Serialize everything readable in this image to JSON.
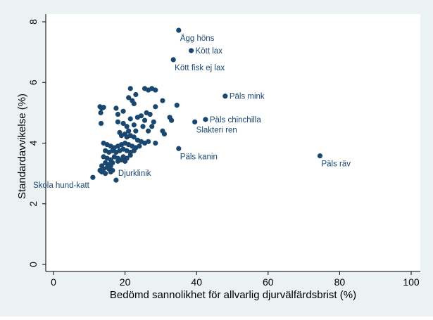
{
  "colors": {
    "outer_background": "#eaf2f3",
    "plot_background": "#ffffff",
    "marker": "#1a476f",
    "axis": "#000000",
    "text": "#1a476f"
  },
  "chart_data": {
    "type": "scatter",
    "xlabel": "Bedömd sannolikhet för allvarlig djurvälfärdsbrist (%)",
    "ylabel": "Standardavvikelse (%)",
    "xlim": [
      0,
      100
    ],
    "ylim": [
      0,
      8
    ],
    "x_ticks": [
      0,
      20,
      40,
      60,
      80,
      100
    ],
    "y_ticks": [
      0,
      2,
      4,
      6,
      8
    ],
    "grid": false,
    "legend": "none",
    "labeled_points": [
      {
        "label": "Ägg höns",
        "x": 35.0,
        "y": 7.72,
        "label_pos": "below-right"
      },
      {
        "label": "Kött lax",
        "x": 38.5,
        "y": 7.05,
        "label_pos": "right"
      },
      {
        "label": "Kött fisk ej lax",
        "x": 33.5,
        "y": 6.75,
        "label_pos": "below-right"
      },
      {
        "label": "Päls mink",
        "x": 48.0,
        "y": 5.55,
        "label_pos": "right"
      },
      {
        "label": "Päls chinchilla",
        "x": 42.5,
        "y": 4.78,
        "label_pos": "right"
      },
      {
        "label": "Slakteri ren",
        "x": 39.5,
        "y": 4.7,
        "label_pos": "below-right"
      },
      {
        "label": "Päls kanin",
        "x": 35.0,
        "y": 3.82,
        "label_pos": "below-right"
      },
      {
        "label": "Päls räv",
        "x": 74.5,
        "y": 3.58,
        "label_pos": "below-right"
      },
      {
        "label": "Djurklinik",
        "x": 17.5,
        "y": 2.78,
        "label_pos": "above-right"
      },
      {
        "label": "Skola hund-katt",
        "x": 11.0,
        "y": 2.87,
        "label_pos": "below-left"
      }
    ],
    "points": [
      [
        13.0,
        5.2
      ],
      [
        13.5,
        5.15
      ],
      [
        13.2,
        5.0
      ],
      [
        14.0,
        5.18
      ],
      [
        13.3,
        4.65
      ],
      [
        17.5,
        5.15
      ],
      [
        19.5,
        5.05
      ],
      [
        18.0,
        4.95
      ],
      [
        21.5,
        5.8
      ],
      [
        21.0,
        5.5
      ],
      [
        22.0,
        5.4
      ],
      [
        23.0,
        5.6
      ],
      [
        22.5,
        5.3
      ],
      [
        25.5,
        5.8
      ],
      [
        26.5,
        5.75
      ],
      [
        27.5,
        5.8
      ],
      [
        28.5,
        5.75
      ],
      [
        30.5,
        5.4
      ],
      [
        28.5,
        5.2
      ],
      [
        34.5,
        5.25
      ],
      [
        26.0,
        5.0
      ],
      [
        27.0,
        4.95
      ],
      [
        24.5,
        4.9
      ],
      [
        21.5,
        4.8
      ],
      [
        23.5,
        4.85
      ],
      [
        25.5,
        4.75
      ],
      [
        28.0,
        4.7
      ],
      [
        27.5,
        4.55
      ],
      [
        32.5,
        4.85
      ],
      [
        33.0,
        4.75
      ],
      [
        30.5,
        4.4
      ],
      [
        31.0,
        4.3
      ],
      [
        18.0,
        4.7
      ],
      [
        19.5,
        4.65
      ],
      [
        20.5,
        4.55
      ],
      [
        21.0,
        4.4
      ],
      [
        22.5,
        4.6
      ],
      [
        23.0,
        4.4
      ],
      [
        25.0,
        4.55
      ],
      [
        26.5,
        4.4
      ],
      [
        18.5,
        4.35
      ],
      [
        19.0,
        4.25
      ],
      [
        20.0,
        4.3
      ],
      [
        20.5,
        4.2
      ],
      [
        21.5,
        4.25
      ],
      [
        22.5,
        4.2
      ],
      [
        23.5,
        4.1
      ],
      [
        24.5,
        4.05
      ],
      [
        25.5,
        4.0
      ],
      [
        26.5,
        4.05
      ],
      [
        28.5,
        4.0
      ],
      [
        14.0,
        4.0
      ],
      [
        15.0,
        3.95
      ],
      [
        16.0,
        3.9
      ],
      [
        17.0,
        3.85
      ],
      [
        18.0,
        3.9
      ],
      [
        19.0,
        3.95
      ],
      [
        20.0,
        4.0
      ],
      [
        21.0,
        3.95
      ],
      [
        22.0,
        3.9
      ],
      [
        23.0,
        3.85
      ],
      [
        24.0,
        3.9
      ],
      [
        14.5,
        3.75
      ],
      [
        15.5,
        3.7
      ],
      [
        16.5,
        3.75
      ],
      [
        17.5,
        3.7
      ],
      [
        18.5,
        3.75
      ],
      [
        19.5,
        3.8
      ],
      [
        20.5,
        3.75
      ],
      [
        21.5,
        3.7
      ],
      [
        22.5,
        3.75
      ],
      [
        14.0,
        3.55
      ],
      [
        15.0,
        3.5
      ],
      [
        16.0,
        3.45
      ],
      [
        17.0,
        3.55
      ],
      [
        18.0,
        3.5
      ],
      [
        19.5,
        3.55
      ],
      [
        20.5,
        3.5
      ],
      [
        21.5,
        3.6
      ],
      [
        14.5,
        3.35
      ],
      [
        15.5,
        3.3
      ],
      [
        16.5,
        3.35
      ],
      [
        18.0,
        3.4
      ],
      [
        19.0,
        3.45
      ],
      [
        20.0,
        3.4
      ],
      [
        14.0,
        3.15
      ],
      [
        15.0,
        3.2
      ],
      [
        16.0,
        3.25
      ],
      [
        16.5,
        3.1
      ],
      [
        13.5,
        3.05
      ],
      [
        14.5,
        3.0
      ],
      [
        16.0,
        3.05
      ],
      [
        13.0,
        3.1
      ],
      [
        15.5,
        3.15
      ],
      [
        13.5,
        3.25
      ]
    ]
  }
}
